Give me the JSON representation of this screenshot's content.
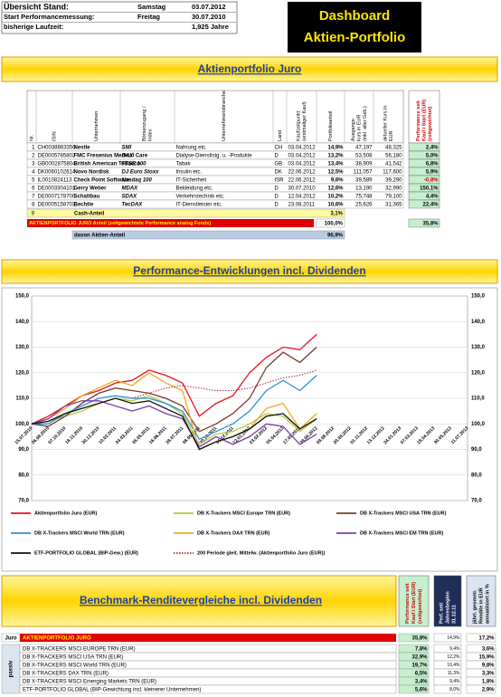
{
  "header": {
    "rows": [
      [
        "Übersicht Stand:",
        "Samstag",
        "03.07.2012"
      ],
      [
        "Start Performancemessung:",
        "Freitag",
        "30.07.2010"
      ],
      [
        "bisherige Laufzeit:",
        "1,925 Jahre"
      ]
    ]
  },
  "title_box": {
    "line1": "Dashboard",
    "line2": "Aktien-Portfolio"
  },
  "portfolio_table": {
    "title": "Aktienportfolio Juro",
    "columns": [
      [
        "Nr."
      ],
      [
        "ISIN"
      ],
      [
        "Unternehmen"
      ],
      [
        "Börsenzugang /",
        "Index"
      ],
      [
        "Unternehmensbranche"
      ],
      [
        "Land"
      ],
      [
        "Kaufzeitpunkt",
        "(erstmaliger Kauf)"
      ],
      [
        "Portfolioanteil"
      ],
      [
        "Ausgangs-",
        "kurs in EUR",
        "(inkl. aller Geb.)"
      ],
      [
        "aktueller Kurs in",
        "EUR"
      ],
      [
        "Performance seit",
        "Kauf / Start (EUR)",
        "(zeitgewichtet)"
      ]
    ],
    "rows": [
      [
        "1",
        "CH0038863350",
        "Nestle",
        "SMI",
        "Nahrung etc.",
        "CH",
        "03.04.2012",
        "14,9%",
        "47,197",
        "48,325",
        "2,4%"
      ],
      [
        "2",
        "DE0005785802",
        "FMC Fresenius Medical Care",
        "DAX",
        "Dialyse-Dienstlstg. u. -Produkte",
        "D",
        "03.04.2012",
        "13,2%",
        "53,508",
        "56,180",
        "5,0%"
      ],
      [
        "3",
        "GB0002875804",
        "British American Tobacco",
        "FTSE 100",
        "Tabak",
        "GB",
        "03.04.2012",
        "13,4%",
        "38,909",
        "41,542",
        "6,8%"
      ],
      [
        "4",
        "DK0060102614",
        "Novo Nordisk",
        "DJ Euro Stoxx",
        "Insulin etc.",
        "DK",
        "22.06.2012",
        "12,5%",
        "111,057",
        "117,600",
        "5,9%"
      ],
      [
        "5",
        "IL0010824113",
        "Check Point Software",
        "Nasdaq 100",
        "IT-Sicherheit",
        "ISR",
        "22.06.2012",
        "9,6%",
        "39,589",
        "39,290",
        "-0,8%"
      ],
      [
        "6",
        "DE0003304101",
        "Gerry Weber",
        "MDAX",
        "Bekleidung etc.",
        "D",
        "30.07.2010",
        "12,6%",
        "13,190",
        "32,990",
        "150,1%"
      ],
      [
        "7",
        "DE0007178700",
        "Schaltbau",
        "SDAX",
        "Verkehrstechnik etc.",
        "D",
        "12.04.2012",
        "10,2%",
        "75,748",
        "79,100",
        "4,4%"
      ],
      [
        "8",
        "DE0005158703",
        "Bechtle",
        "TecDAX",
        "IT-Dienstleister etc.",
        "D",
        "23.08.2011",
        "10,6%",
        "25,626",
        "31,365",
        "22,4%"
      ]
    ],
    "cash": {
      "nr": "9",
      "label": "Cash-Anteil",
      "share": "3,1%"
    },
    "total": {
      "label": "AKTIENPORTFOLIO JURO Anteil (zeitgewichtete Performance analog Fonds)",
      "share": "100,0%",
      "performance": "35,8%"
    },
    "equity": {
      "label": "davon Aktien-Anteil",
      "share": "96,9%"
    }
  },
  "chart_data": {
    "type": "line",
    "title": "Performance-Entwicklungen incl. Dividenden",
    "categories": [
      "15.07.2010",
      "26.08.2010",
      "07.10.2010",
      "18.11.2010",
      "30.12.2010",
      "10.02.2011",
      "24.03.2011",
      "05.05.2011",
      "16.06.2011",
      "28.07.2011",
      "08.09.2011",
      "20.10.2011",
      "01.12.2011",
      "12.01.2012",
      "23.02.2012",
      "05.04.2012",
      "17.05.2012",
      "28.06.2012",
      "09.08.2012",
      "20.09.2012",
      "01.11.2012",
      "13.12.2012",
      "24.01.2013",
      "07.03.2013",
      "18.04.2013",
      "30.05.2013",
      "11.07.2013"
    ],
    "ylim": [
      70,
      150
    ],
    "yticks": [
      {
        "value": 70,
        "label": "70,0"
      },
      {
        "value": 80,
        "label": "80,0"
      },
      {
        "value": 90,
        "label": "90,0"
      },
      {
        "value": 100,
        "label": "100,0"
      },
      {
        "value": 110,
        "label": "110,0"
      },
      {
        "value": 120,
        "label": "120,0"
      },
      {
        "value": 130,
        "label": "130,0"
      },
      {
        "value": 140,
        "label": "140,0"
      },
      {
        "value": 150,
        "label": "150,0"
      }
    ],
    "grid": true,
    "series": [
      {
        "name": "Aktienportfolio Juro (EUR)",
        "color": "#e8101a",
        "values": [
          100,
          103,
          107,
          111,
          113,
          116,
          117,
          121,
          119,
          116,
          103,
          108,
          111,
          120,
          126,
          130,
          129,
          135,
          null,
          null,
          null,
          null,
          null,
          null,
          null,
          null,
          null
        ]
      },
      {
        "name": "DB X-Trackers MSCI Europe TRN (EUR)",
        "color": "#b5c93a",
        "values": [
          100,
          101,
          103,
          105,
          108,
          110,
          109,
          111,
          108,
          104,
          92,
          96,
          97,
          100,
          104,
          103,
          97,
          102,
          null,
          null,
          null,
          null,
          null,
          null,
          null,
          null,
          null
        ]
      },
      {
        "name": "DB X-Trackers MSCI USA TRN (EUR)",
        "color": "#7a3b2e",
        "values": [
          100,
          99,
          103,
          108,
          112,
          114,
          113,
          112,
          110,
          107,
          97,
          100,
          104,
          110,
          122,
          128,
          124,
          130,
          null,
          null,
          null,
          null,
          null,
          null,
          null,
          null,
          null
        ]
      },
      {
        "name": "DB X-Trackers MSCI World TRN (EUR)",
        "color": "#2f8fd8",
        "values": [
          100,
          100,
          104,
          107,
          110,
          111,
          110,
          110,
          108,
          105,
          94,
          97,
          100,
          105,
          113,
          117,
          113,
          119,
          null,
          null,
          null,
          null,
          null,
          null,
          null,
          null,
          null
        ]
      },
      {
        "name": "DB X-Trackers DAX TRN (EUR)",
        "color": "#f5a623",
        "values": [
          100,
          102,
          106,
          111,
          114,
          117,
          115,
          120,
          116,
          113,
          90,
          93,
          95,
          98,
          106,
          108,
          98,
          104,
          null,
          null,
          null,
          null,
          null,
          null,
          null,
          null,
          null
        ]
      },
      {
        "name": "DB X-Trackers  MSCI EM TRN (EUR)",
        "color": "#7b3fa6",
        "values": [
          100,
          102,
          107,
          109,
          109,
          107,
          105,
          107,
          104,
          102,
          91,
          95,
          92,
          95,
          100,
          99,
          92,
          96,
          null,
          null,
          null,
          null,
          null,
          null,
          null,
          null,
          null
        ]
      },
      {
        "name": "ETF-PORTFOLIO GLOBAL (BIP-Gew.) (EUR)",
        "color": "#111111",
        "values": [
          100,
          101,
          104,
          106,
          108,
          110,
          108,
          109,
          106,
          103,
          90,
          93,
          95,
          98,
          103,
          104,
          98,
          102,
          null,
          null,
          null,
          null,
          null,
          null,
          null,
          null,
          null
        ]
      },
      {
        "name": "200 Periode gleit. Mittelw. (Aktienportfolio Juro (EUR))",
        "color": "#b0272d",
        "style": "dotted",
        "values": [
          null,
          null,
          null,
          null,
          null,
          null,
          110,
          112,
          114,
          115,
          114,
          113,
          113,
          114,
          116,
          118,
          119,
          121,
          null,
          null,
          null,
          null,
          null,
          null,
          null,
          null,
          null
        ]
      }
    ]
  },
  "benchmark_table": {
    "title": "Benchmark-Renditevergleiche incl. Dividenden",
    "columns": [
      [
        "Performance seit",
        "Kauf / Start (EUR)",
        "(zeitgewichtet)"
      ],
      [
        "Perf. seit",
        "Jahresbeginn",
        "31.12.11"
      ],
      [
        "jährl. geometr.",
        "Rendite in EUR",
        "annualisiert in %"
      ]
    ],
    "group_label": "passiv",
    "portfolio": {
      "label": "Juro",
      "name": "AKTIENPORTFOLIO JURO",
      "values": [
        "35,8%",
        "14,9%",
        "17,2%"
      ]
    },
    "rows": [
      {
        "name": "DB X-TRACKERS MSCI EUROPE TRN (EUR)",
        "values": [
          "7,8%",
          "9,4%",
          "3,6%"
        ]
      },
      {
        "name": "DB X-TRACKERS MSCI USA TRN (EUR)",
        "values": [
          "32,9%",
          "12,2%",
          "15,9%"
        ]
      },
      {
        "name": "DB X-TRACKERS MSCI World TRN (EUR)",
        "values": [
          "19,7%",
          "10,4%",
          "9,8%"
        ]
      },
      {
        "name": "DB X-TRACKERS DAX TRN (EUR)",
        "values": [
          "6,5%",
          "11,3%",
          "3,3%"
        ]
      },
      {
        "name": "DB X-TRACKERS MSCI Emerging Markets TRN (EUR)",
        "values": [
          "3,4%",
          "9,4%",
          "1,8%"
        ]
      },
      {
        "name": "ETF-PORTFOLIO GLOBAL (BIP-Gewichtung incl. kleinerer Unternehmen)",
        "values": [
          "5,6%",
          "8,0%",
          "2,9%"
        ]
      }
    ]
  }
}
